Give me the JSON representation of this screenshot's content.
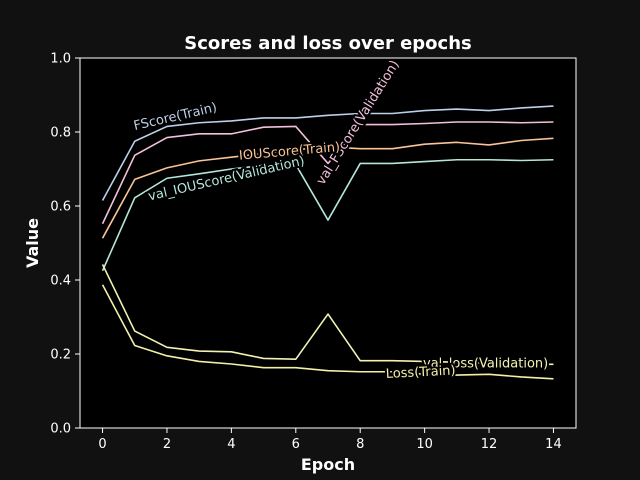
{
  "chart_data": {
    "type": "line",
    "title": "Scores and loss over epochs",
    "xlabel": "Epoch",
    "ylabel": "Value",
    "xlim": [
      -0.7,
      14.7
    ],
    "ylim": [
      0.0,
      1.0
    ],
    "xticks": [
      0,
      2,
      4,
      6,
      8,
      10,
      12,
      14
    ],
    "xtick_labels": [
      "0",
      "2",
      "4",
      "6",
      "8",
      "10",
      "12",
      "14"
    ],
    "yticks": [
      0.0,
      0.2,
      0.4,
      0.6,
      0.8,
      1.0
    ],
    "ytick_labels": [
      "0.0",
      "0.2",
      "0.4",
      "0.6",
      "0.8",
      "1.0"
    ],
    "grid": false,
    "legend": "inline labels on lines",
    "x": [
      0,
      1,
      2,
      3,
      4,
      5,
      6,
      7,
      8,
      9,
      10,
      11,
      12,
      13,
      14
    ],
    "series": [
      {
        "name": "FScore(Train)",
        "color": "#bdd0e8",
        "values": [
          0.615,
          0.775,
          0.815,
          0.825,
          0.83,
          0.838,
          0.838,
          0.845,
          0.85,
          0.85,
          0.858,
          0.862,
          0.858,
          0.865,
          0.87
        ],
        "label_x": 1.0,
        "label_y": 0.805,
        "label_rotation": -13
      },
      {
        "name": "val_FScore(Validation)",
        "color": "#f2c0dc",
        "values": [
          0.552,
          0.737,
          0.785,
          0.795,
          0.795,
          0.813,
          0.815,
          0.715,
          0.82,
          0.82,
          0.823,
          0.827,
          0.827,
          0.825,
          0.827
        ],
        "label_x": 6.85,
        "label_y": 0.655,
        "label_rotation": -58
      },
      {
        "name": "IOUScore(Train)",
        "color": "#f9c496",
        "values": [
          0.513,
          0.672,
          0.703,
          0.722,
          0.732,
          0.742,
          0.752,
          0.76,
          0.755,
          0.755,
          0.767,
          0.772,
          0.765,
          0.777,
          0.783
        ],
        "label_x": 4.25,
        "label_y": 0.725,
        "label_rotation": -5
      },
      {
        "name": "val_IOUScore(Validation)",
        "color": "#b4e6dc",
        "values": [
          0.425,
          0.622,
          0.675,
          0.687,
          0.7,
          0.71,
          0.712,
          0.562,
          0.715,
          0.715,
          0.72,
          0.725,
          0.725,
          0.723,
          0.725
        ],
        "label_x": 1.45,
        "label_y": 0.615,
        "label_rotation": -13
      },
      {
        "name": "val_loss(Validation)",
        "color": "#f2f2b4",
        "values": [
          0.442,
          0.262,
          0.218,
          0.208,
          0.206,
          0.188,
          0.186,
          0.308,
          0.182,
          0.182,
          0.18,
          0.178,
          0.175,
          0.173,
          0.172
        ],
        "label_x": 9.95,
        "label_y": 0.163,
        "label_rotation": 0
      },
      {
        "name": "Loss(Train)",
        "color": "#f4f0a8",
        "values": [
          0.387,
          0.223,
          0.195,
          0.18,
          0.173,
          0.163,
          0.163,
          0.155,
          0.152,
          0.152,
          0.145,
          0.143,
          0.145,
          0.138,
          0.133
        ],
        "label_x": 8.8,
        "label_y": 0.135,
        "label_rotation": -3
      }
    ]
  }
}
